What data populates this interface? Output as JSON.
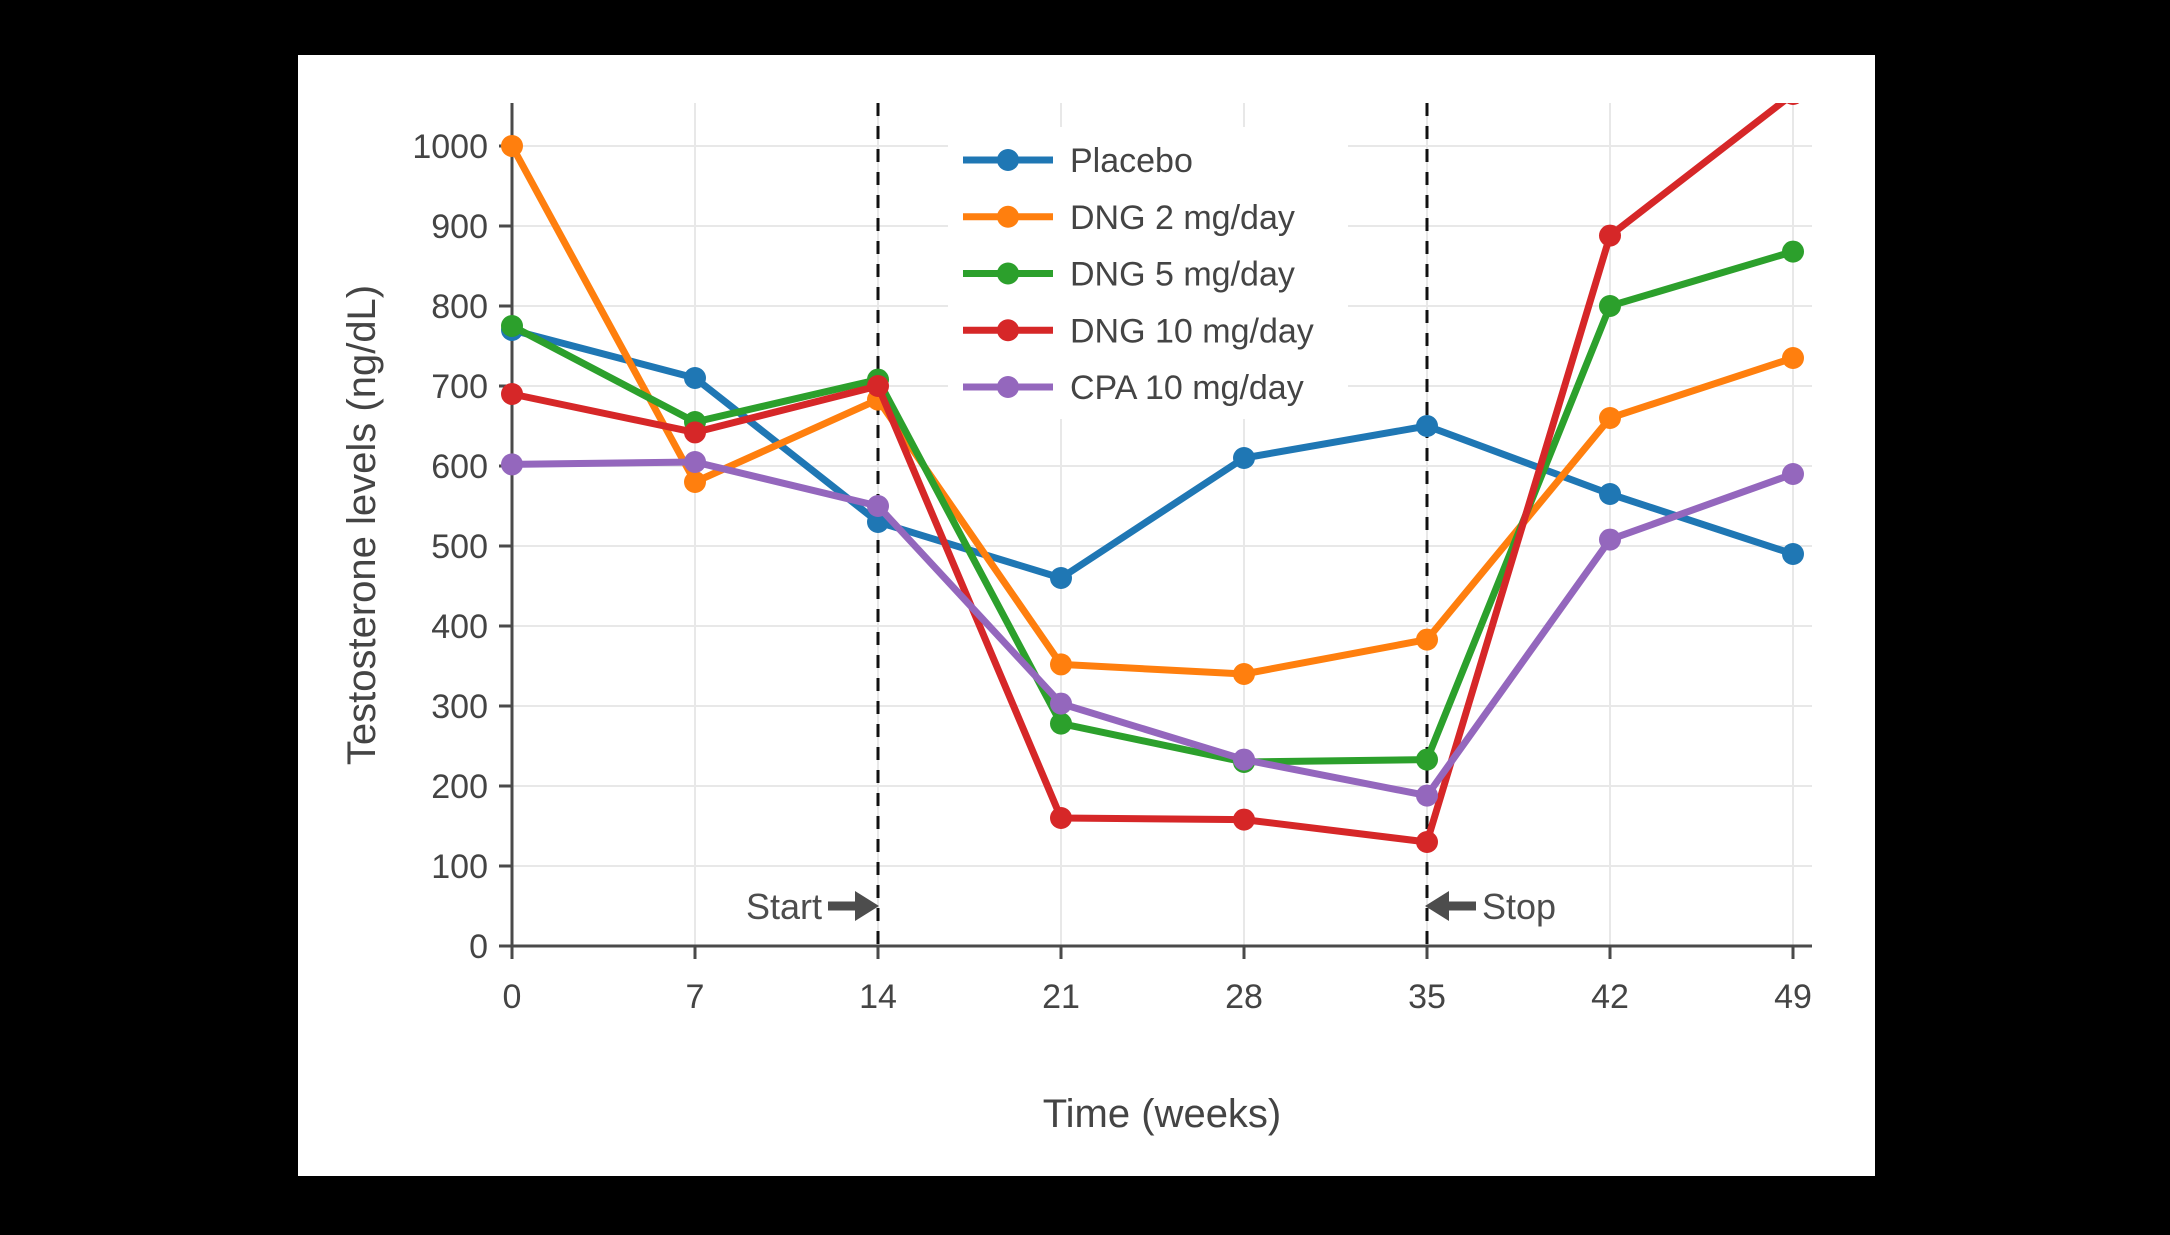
{
  "chart_data": {
    "type": "line",
    "title": "",
    "xlabel": "Time (weeks)",
    "ylabel": "Testosterone levels (ng/dL)",
    "x": [
      0,
      7,
      14,
      21,
      28,
      35,
      42,
      49
    ],
    "x_ticks": [
      0,
      7,
      14,
      21,
      28,
      35,
      42,
      49
    ],
    "y_ticks": [
      0,
      100,
      200,
      300,
      400,
      500,
      600,
      700,
      800,
      900,
      1000
    ],
    "xlim": [
      0,
      49.5
    ],
    "ylim": [
      0,
      1054
    ],
    "grid": true,
    "legend_position": "inside-top-center",
    "series": [
      {
        "name": "Placebo",
        "color": "#1f77b4",
        "values": [
          770,
          710,
          530,
          460,
          610,
          650,
          565,
          490
        ]
      },
      {
        "name": "DNG 2 mg/day",
        "color": "#ff7f0e",
        "values": [
          1000,
          580,
          683,
          352,
          340,
          383,
          660,
          735
        ]
      },
      {
        "name": "DNG 5 mg/day",
        "color": "#2ca02c",
        "values": [
          775,
          655,
          708,
          278,
          230,
          233,
          800,
          868
        ]
      },
      {
        "name": "DNG 10 mg/day",
        "color": "#d62728",
        "values": [
          690,
          642,
          700,
          160,
          158,
          130,
          888,
          1065
        ]
      },
      {
        "name": "CPA 10 mg/day",
        "color": "#9467bd",
        "values": [
          602,
          605,
          550,
          303,
          233,
          188,
          508,
          590
        ]
      }
    ],
    "vlines": [
      {
        "week": 14,
        "style": "dashed"
      },
      {
        "week": 35,
        "style": "dashed"
      }
    ],
    "annotations": [
      {
        "label": "Start",
        "arrow": "right",
        "week": 14,
        "y_value": 50
      },
      {
        "label": "Stop",
        "arrow": "left",
        "week": 35,
        "y_value": 50
      }
    ]
  },
  "colors": {
    "page_background": "#000000",
    "card_background": "#ffffff",
    "text": "#444444",
    "grid": "#e8e8e8",
    "axis": "#4a4a4a",
    "dashed_line": "#111111",
    "annotation": "#4d4d4d"
  }
}
